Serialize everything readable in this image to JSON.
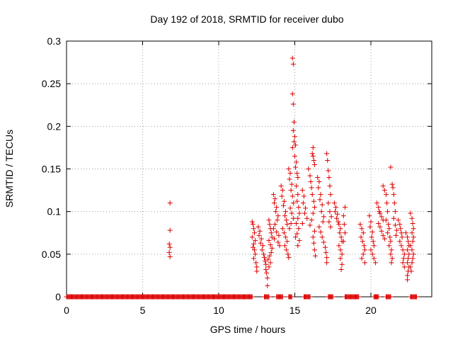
{
  "chart_data": {
    "type": "scatter",
    "title": "Day 192 of 2018, SRMTID for receiver dubo",
    "xlabel": "GPS time / hours",
    "ylabel": "SRMTID / TECUs",
    "xlim": [
      0,
      24
    ],
    "ylim": [
      0,
      0.3
    ],
    "x_ticks": [
      0,
      5,
      10,
      15,
      20
    ],
    "x_tick_labels": [
      "0",
      "5",
      "10",
      "15",
      "20"
    ],
    "y_ticks": [
      0,
      0.05,
      0.1,
      0.15,
      0.2,
      0.25,
      0.3
    ],
    "y_tick_labels": [
      "0",
      "0.05",
      "0.1",
      "0.15",
      "0.2",
      "0.25",
      "0.3"
    ],
    "grid": true,
    "marker": "plus",
    "marker_color": "#dd0000",
    "series": [
      {
        "name": "SRMTID",
        "points": [
          [
            6.8,
            0.11
          ],
          [
            6.8,
            0.078
          ],
          [
            6.75,
            0.062
          ],
          [
            6.8,
            0.058
          ],
          [
            6.75,
            0.052
          ],
          [
            6.8,
            0.047
          ],
          [
            12.2,
            0.088
          ],
          [
            12.25,
            0.085
          ],
          [
            12.3,
            0.08
          ],
          [
            12.35,
            0.075
          ],
          [
            12.2,
            0.07
          ],
          [
            12.4,
            0.066
          ],
          [
            12.3,
            0.062
          ],
          [
            12.25,
            0.058
          ],
          [
            12.35,
            0.055
          ],
          [
            12.4,
            0.05
          ],
          [
            12.3,
            0.045
          ],
          [
            12.45,
            0.04
          ],
          [
            12.5,
            0.035
          ],
          [
            12.5,
            0.03
          ],
          [
            12.6,
            0.082
          ],
          [
            12.7,
            0.077
          ],
          [
            12.65,
            0.072
          ],
          [
            12.8,
            0.068
          ],
          [
            12.75,
            0.063
          ],
          [
            12.9,
            0.06
          ],
          [
            12.85,
            0.055
          ],
          [
            12.95,
            0.05
          ],
          [
            13.0,
            0.046
          ],
          [
            13.05,
            0.042
          ],
          [
            13.1,
            0.038
          ],
          [
            13.1,
            0.032
          ],
          [
            13.15,
            0.028
          ],
          [
            13.2,
            0.022
          ],
          [
            13.2,
            0.013
          ],
          [
            13.3,
            0.09
          ],
          [
            13.35,
            0.085
          ],
          [
            13.4,
            0.08
          ],
          [
            13.45,
            0.075
          ],
          [
            13.5,
            0.07
          ],
          [
            13.3,
            0.066
          ],
          [
            13.4,
            0.061
          ],
          [
            13.5,
            0.057
          ],
          [
            13.45,
            0.052
          ],
          [
            13.35,
            0.048
          ],
          [
            13.25,
            0.044
          ],
          [
            13.4,
            0.04
          ],
          [
            13.3,
            0.035
          ],
          [
            13.6,
            0.12
          ],
          [
            13.7,
            0.115
          ],
          [
            13.65,
            0.11
          ],
          [
            13.8,
            0.105
          ],
          [
            13.75,
            0.1
          ],
          [
            13.9,
            0.095
          ],
          [
            13.85,
            0.09
          ],
          [
            13.7,
            0.085
          ],
          [
            13.6,
            0.08
          ],
          [
            13.8,
            0.076
          ],
          [
            13.95,
            0.072
          ],
          [
            13.65,
            0.068
          ],
          [
            13.9,
            0.064
          ],
          [
            14.0,
            0.06
          ],
          [
            14.1,
            0.13
          ],
          [
            14.2,
            0.125
          ],
          [
            14.15,
            0.118
          ],
          [
            14.3,
            0.112
          ],
          [
            14.25,
            0.107
          ],
          [
            14.4,
            0.1
          ],
          [
            14.35,
            0.095
          ],
          [
            14.45,
            0.09
          ],
          [
            14.5,
            0.085
          ],
          [
            14.2,
            0.08
          ],
          [
            14.3,
            0.075
          ],
          [
            14.4,
            0.07
          ],
          [
            14.5,
            0.065
          ],
          [
            14.35,
            0.06
          ],
          [
            14.45,
            0.055
          ],
          [
            14.55,
            0.05
          ],
          [
            14.6,
            0.046
          ],
          [
            14.6,
            0.15
          ],
          [
            14.7,
            0.145
          ],
          [
            14.65,
            0.138
          ],
          [
            14.8,
            0.132
          ],
          [
            14.75,
            0.125
          ],
          [
            14.85,
            0.118
          ],
          [
            14.9,
            0.11
          ],
          [
            14.7,
            0.104
          ],
          [
            14.8,
            0.098
          ],
          [
            14.9,
            0.092
          ],
          [
            14.75,
            0.086
          ],
          [
            14.65,
            0.08
          ],
          [
            14.85,
            0.28
          ],
          [
            14.9,
            0.273
          ],
          [
            14.85,
            0.238
          ],
          [
            14.9,
            0.226
          ],
          [
            14.95,
            0.205
          ],
          [
            14.9,
            0.195
          ],
          [
            15.0,
            0.188
          ],
          [
            14.95,
            0.182
          ],
          [
            15.05,
            0.178
          ],
          [
            14.85,
            0.175
          ],
          [
            15.0,
            0.165
          ],
          [
            15.1,
            0.158
          ],
          [
            15.05,
            0.152
          ],
          [
            15.15,
            0.145
          ],
          [
            15.2,
            0.14
          ],
          [
            15.1,
            0.13
          ],
          [
            15.2,
            0.12
          ],
          [
            15.15,
            0.112
          ],
          [
            15.25,
            0.105
          ],
          [
            15.3,
            0.098
          ],
          [
            15.2,
            0.092
          ],
          [
            15.1,
            0.086
          ],
          [
            15.25,
            0.08
          ],
          [
            15.15,
            0.074
          ],
          [
            15.05,
            0.07
          ],
          [
            15.3,
            0.066
          ],
          [
            15.2,
            0.06
          ],
          [
            15.5,
            0.125
          ],
          [
            15.6,
            0.118
          ],
          [
            15.55,
            0.11
          ],
          [
            15.7,
            0.104
          ],
          [
            15.65,
            0.098
          ],
          [
            15.8,
            0.092
          ],
          [
            15.5,
            0.086
          ],
          [
            15.9,
            0.15
          ],
          [
            16.0,
            0.142
          ],
          [
            16.05,
            0.135
          ],
          [
            16.1,
            0.128
          ],
          [
            16.15,
            0.168
          ],
          [
            16.2,
            0.175
          ],
          [
            16.2,
            0.165
          ],
          [
            16.25,
            0.16
          ],
          [
            16.3,
            0.155
          ],
          [
            16.15,
            0.12
          ],
          [
            16.25,
            0.112
          ],
          [
            16.3,
            0.105
          ],
          [
            16.2,
            0.098
          ],
          [
            16.1,
            0.09
          ],
          [
            16.0,
            0.084
          ],
          [
            16.3,
            0.077
          ],
          [
            16.2,
            0.07
          ],
          [
            16.25,
            0.063
          ],
          [
            16.3,
            0.055
          ],
          [
            16.35,
            0.048
          ],
          [
            16.5,
            0.14
          ],
          [
            16.6,
            0.135
          ],
          [
            16.55,
            0.128
          ],
          [
            16.7,
            0.12
          ],
          [
            16.65,
            0.114
          ],
          [
            16.8,
            0.108
          ],
          [
            16.75,
            0.1
          ],
          [
            16.9,
            0.094
          ],
          [
            16.85,
            0.088
          ],
          [
            16.6,
            0.082
          ],
          [
            16.7,
            0.076
          ],
          [
            16.8,
            0.07
          ],
          [
            16.9,
            0.064
          ],
          [
            17.0,
            0.058
          ],
          [
            17.05,
            0.052
          ],
          [
            17.1,
            0.046
          ],
          [
            17.1,
            0.04
          ],
          [
            17.1,
            0.168
          ],
          [
            17.15,
            0.16
          ],
          [
            17.2,
            0.148
          ],
          [
            17.25,
            0.14
          ],
          [
            17.3,
            0.13
          ],
          [
            17.35,
            0.12
          ],
          [
            17.2,
            0.11
          ],
          [
            17.3,
            0.1
          ],
          [
            17.4,
            0.094
          ],
          [
            17.25,
            0.088
          ],
          [
            17.35,
            0.082
          ],
          [
            17.6,
            0.11
          ],
          [
            17.7,
            0.105
          ],
          [
            17.65,
            0.1
          ],
          [
            17.8,
            0.097
          ],
          [
            17.75,
            0.092
          ],
          [
            17.85,
            0.088
          ],
          [
            17.9,
            0.085
          ],
          [
            18.0,
            0.08
          ],
          [
            17.95,
            0.075
          ],
          [
            18.05,
            0.07
          ],
          [
            18.1,
            0.065
          ],
          [
            17.9,
            0.06
          ],
          [
            18.0,
            0.055
          ],
          [
            18.1,
            0.05
          ],
          [
            18.0,
            0.045
          ],
          [
            18.1,
            0.038
          ],
          [
            18.05,
            0.032
          ],
          [
            18.3,
            0.105
          ],
          [
            18.2,
            0.095
          ],
          [
            18.25,
            0.085
          ],
          [
            18.3,
            0.075
          ],
          [
            18.2,
            0.065
          ],
          [
            19.3,
            0.085
          ],
          [
            19.4,
            0.08
          ],
          [
            19.5,
            0.075
          ],
          [
            19.35,
            0.07
          ],
          [
            19.45,
            0.065
          ],
          [
            19.55,
            0.06
          ],
          [
            19.6,
            0.055
          ],
          [
            19.5,
            0.05
          ],
          [
            19.4,
            0.045
          ],
          [
            19.6,
            0.04
          ],
          [
            19.9,
            0.095
          ],
          [
            20.0,
            0.088
          ],
          [
            19.95,
            0.082
          ],
          [
            20.1,
            0.076
          ],
          [
            20.05,
            0.07
          ],
          [
            20.15,
            0.065
          ],
          [
            20.2,
            0.06
          ],
          [
            20.0,
            0.055
          ],
          [
            20.1,
            0.05
          ],
          [
            20.2,
            0.045
          ],
          [
            20.3,
            0.04
          ],
          [
            20.4,
            0.11
          ],
          [
            20.5,
            0.105
          ],
          [
            20.55,
            0.1
          ],
          [
            20.6,
            0.098
          ],
          [
            20.7,
            0.094
          ],
          [
            20.8,
            0.09
          ],
          [
            20.5,
            0.086
          ],
          [
            20.6,
            0.082
          ],
          [
            20.7,
            0.077
          ],
          [
            20.8,
            0.072
          ],
          [
            20.9,
            0.068
          ],
          [
            20.8,
            0.13
          ],
          [
            20.9,
            0.125
          ],
          [
            21.0,
            0.12
          ],
          [
            21.05,
            0.11
          ],
          [
            21.1,
            0.1
          ],
          [
            21.0,
            0.09
          ],
          [
            21.15,
            0.085
          ],
          [
            21.2,
            0.08
          ],
          [
            21.1,
            0.075
          ],
          [
            21.25,
            0.07
          ],
          [
            21.3,
            0.065
          ],
          [
            21.2,
            0.06
          ],
          [
            21.35,
            0.055
          ],
          [
            21.3,
            0.05
          ],
          [
            21.4,
            0.045
          ],
          [
            21.35,
            0.04
          ],
          [
            21.3,
            0.152
          ],
          [
            21.4,
            0.132
          ],
          [
            21.45,
            0.128
          ],
          [
            21.5,
            0.12
          ],
          [
            21.55,
            0.11
          ],
          [
            21.6,
            0.1
          ],
          [
            21.5,
            0.092
          ],
          [
            21.6,
            0.084
          ],
          [
            21.7,
            0.078
          ],
          [
            21.65,
            0.072
          ],
          [
            21.8,
            0.09
          ],
          [
            21.9,
            0.085
          ],
          [
            21.95,
            0.08
          ],
          [
            22.0,
            0.075
          ],
          [
            22.05,
            0.07
          ],
          [
            21.9,
            0.065
          ],
          [
            22.0,
            0.06
          ],
          [
            22.1,
            0.055
          ],
          [
            22.2,
            0.05
          ],
          [
            22.15,
            0.045
          ],
          [
            22.1,
            0.04
          ],
          [
            22.2,
            0.035
          ],
          [
            22.3,
            0.075
          ],
          [
            22.4,
            0.07
          ],
          [
            22.45,
            0.065
          ],
          [
            22.5,
            0.06
          ],
          [
            22.4,
            0.055
          ],
          [
            22.5,
            0.05
          ],
          [
            22.45,
            0.045
          ],
          [
            22.4,
            0.04
          ],
          [
            22.5,
            0.035
          ],
          [
            22.45,
            0.03
          ],
          [
            22.4,
            0.025
          ],
          [
            22.4,
            0.02
          ],
          [
            22.6,
            0.098
          ],
          [
            22.7,
            0.092
          ],
          [
            22.75,
            0.086
          ],
          [
            22.8,
            0.08
          ],
          [
            22.7,
            0.075
          ],
          [
            22.8,
            0.07
          ],
          [
            22.75,
            0.065
          ],
          [
            22.6,
            0.06
          ],
          [
            22.7,
            0.055
          ],
          [
            22.8,
            0.05
          ],
          [
            22.75,
            0.045
          ],
          [
            22.7,
            0.04
          ],
          [
            22.6,
            0.035
          ],
          [
            22.65,
            0.03
          ]
        ],
        "zero_band": {
          "segments": [
            [
              0.0,
              12.2
            ],
            [
              13.0,
              13.3
            ],
            [
              13.8,
              14.2
            ],
            [
              14.6,
              14.8
            ],
            [
              15.6,
              16.0
            ],
            [
              17.2,
              17.5
            ],
            [
              18.3,
              19.2
            ],
            [
              20.2,
              20.5
            ],
            [
              21.0,
              21.3
            ],
            [
              22.6,
              23.0
            ]
          ],
          "value": 0
        }
      }
    ]
  }
}
